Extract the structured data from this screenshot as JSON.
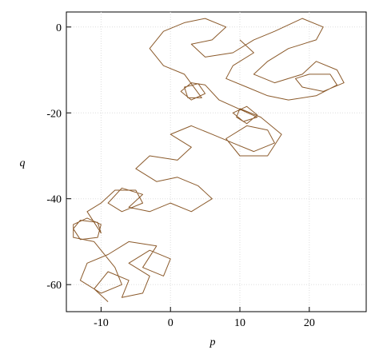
{
  "chart_data": {
    "type": "line",
    "x_label": "p",
    "y_label": "q",
    "color": "#8b5a2b",
    "grid": true,
    "xlim": [
      -15,
      28.2
    ],
    "ylim": [
      -66.3,
      3.5
    ],
    "xticks": [
      -10,
      0,
      10,
      20
    ],
    "yticks": [
      0,
      -20,
      -40,
      -60
    ],
    "x": [
      -9,
      -11,
      -9,
      -6,
      -7,
      -4,
      -3,
      -6,
      -3,
      0,
      -1,
      -4,
      -2,
      -6,
      -9,
      -12,
      -13,
      -10,
      -7,
      -8,
      -11,
      -14,
      -14,
      -12,
      -10,
      -10.5,
      -13,
      -14,
      -13,
      -10.5,
      -10,
      -12,
      -10,
      -8,
      -5,
      -4,
      -7,
      -9,
      -7,
      -4,
      -6,
      -3,
      0,
      3,
      6,
      4,
      1,
      -2,
      -5,
      -3,
      1,
      3,
      0,
      3,
      6,
      9,
      12,
      15,
      14,
      11,
      8,
      10,
      14,
      16,
      13,
      10,
      9.5,
      11,
      12.5,
      11,
      9,
      10.5,
      12.5,
      7,
      5,
      3,
      1.5,
      3,
      5,
      4,
      2,
      2.5,
      4.5,
      2,
      -1,
      -3,
      -1,
      2,
      5,
      8,
      6,
      3,
      5,
      9,
      12,
      15,
      19,
      22,
      21,
      17,
      14,
      12,
      15,
      19,
      21,
      24,
      25,
      22,
      19,
      18,
      20,
      23,
      24,
      21,
      17,
      14,
      11,
      8,
      9,
      12,
      10
    ],
    "series": [
      {
        "name": "q",
        "values": [
          -64,
          -61,
          -57,
          -59,
          -63,
          -62,
          -58,
          -55,
          -52,
          -54,
          -58,
          -56,
          -51,
          -50,
          -53,
          -55,
          -59,
          -62,
          -60,
          -56,
          -50,
          -49,
          -46,
          -44.5,
          -46,
          -49,
          -49.5,
          -47,
          -45,
          -45.5,
          -48,
          -43,
          -41,
          -38,
          -38,
          -41,
          -43,
          -41,
          -37.5,
          -39,
          -42,
          -43,
          -41,
          -43,
          -40,
          -37,
          -35,
          -36,
          -33,
          -30,
          -31,
          -28,
          -25,
          -23,
          -25,
          -27,
          -29,
          -27,
          -24,
          -23,
          -26,
          -30,
          -30,
          -25,
          -21,
          -19,
          -21,
          -22.5,
          -20.5,
          -18.5,
          -20,
          -22,
          -21,
          -17,
          -13.5,
          -13,
          -15,
          -17,
          -15.5,
          -13.2,
          -14,
          -16.5,
          -16.5,
          -11,
          -9,
          -5,
          -1,
          1,
          2,
          0,
          -3,
          -4,
          -7,
          -6,
          -3,
          -1,
          2,
          0,
          -3,
          -5,
          -8,
          -11,
          -13,
          -11,
          -8,
          -10,
          -13,
          -15,
          -14,
          -12,
          -11,
          -11,
          -13.5,
          -16,
          -17,
          -16,
          -14,
          -12,
          -9,
          -6,
          -3
        ]
      }
    ]
  }
}
